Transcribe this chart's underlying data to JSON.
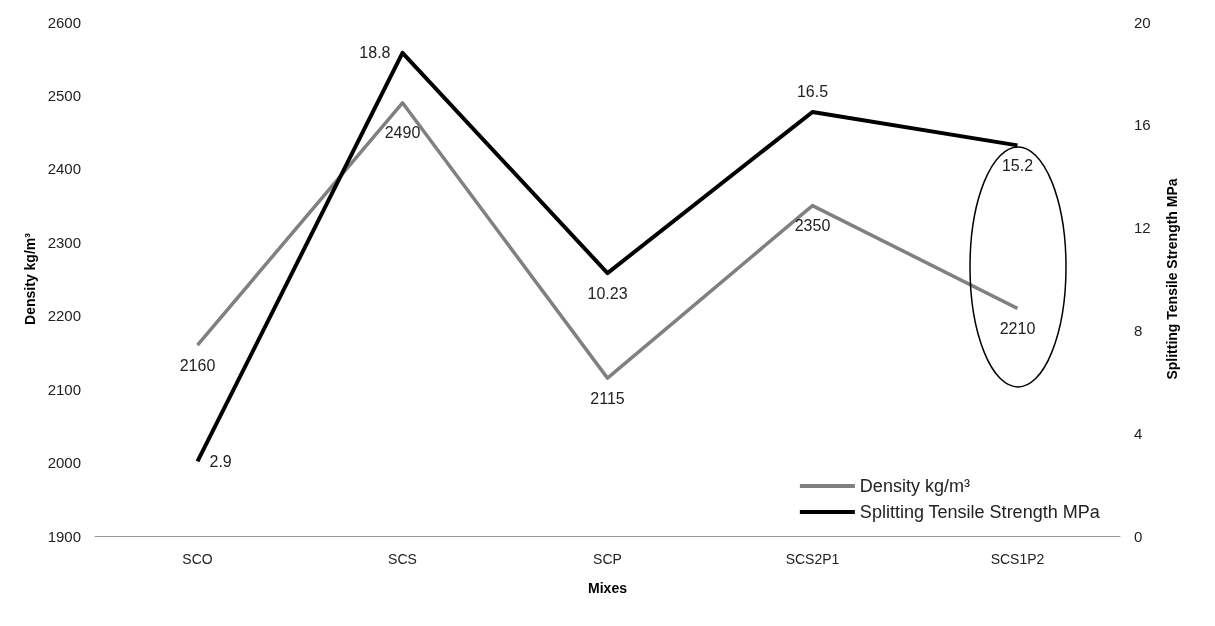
{
  "chart_data": {
    "type": "line",
    "xlabel": "Mixes",
    "ylabel": "Density kg/m³",
    "y2label": "Splitting Tensile Strength MPa",
    "categories": [
      "SCO",
      "SCS",
      "SCP",
      "SCS2P1",
      "SCS1P2"
    ],
    "series": [
      {
        "name": "Density kg/m³",
        "color": "#808080",
        "values": [
          2160,
          2490,
          2115,
          2350,
          2210
        ]
      },
      {
        "name": "Splitting Tensile Strength MPa",
        "color": "#000000",
        "axis": "y2",
        "values": [
          2.9,
          18.8,
          10.23,
          16.5,
          15.2
        ]
      }
    ],
    "ylim": [
      1900,
      2600
    ],
    "yticks": [
      1900,
      2000,
      2100,
      2200,
      2300,
      2400,
      2500,
      2600
    ],
    "y2lim": [
      0,
      20
    ],
    "y2ticks": [
      0,
      4,
      8,
      12,
      16,
      20
    ],
    "data_labels": true,
    "legend": "bottom right",
    "grid": false,
    "marker": "none"
  }
}
